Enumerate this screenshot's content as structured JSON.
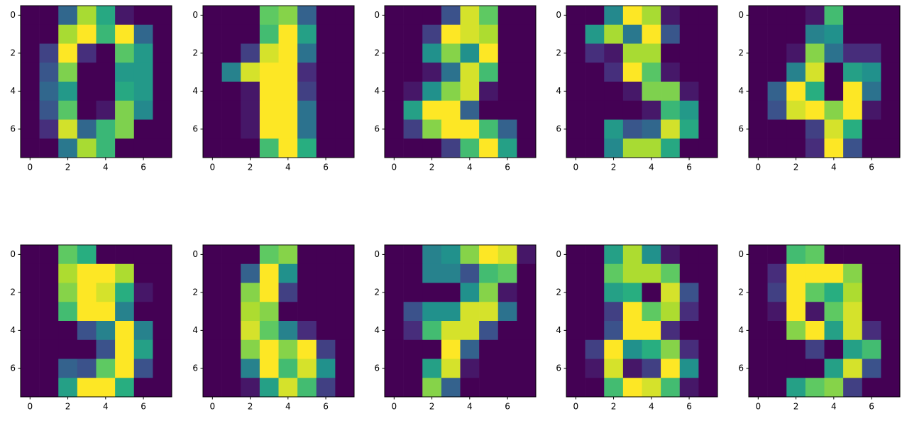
{
  "chart_data": [
    {
      "type": "heatmap",
      "colormap": "viridis",
      "clim": [
        0,
        15
      ],
      "xlim": [
        -0.5,
        7.5
      ],
      "ylim": [
        7.5,
        -0.5
      ],
      "xticks": [
        0,
        2,
        4,
        6
      ],
      "yticks": [
        0,
        2,
        4,
        6
      ],
      "values": [
        [
          0,
          0,
          5,
          13,
          9,
          1,
          0,
          0
        ],
        [
          0,
          0,
          13,
          15,
          10,
          15,
          5,
          0
        ],
        [
          0,
          3,
          15,
          2,
          0,
          11,
          8,
          0
        ],
        [
          0,
          4,
          12,
          0,
          0,
          8,
          8,
          0
        ],
        [
          0,
          5,
          8,
          0,
          0,
          9,
          8,
          0
        ],
        [
          0,
          4,
          11,
          0,
          1,
          12,
          7,
          0
        ],
        [
          0,
          2,
          14,
          5,
          10,
          12,
          0,
          0
        ],
        [
          0,
          0,
          6,
          13,
          10,
          0,
          0,
          0
        ]
      ]
    },
    {
      "type": "heatmap",
      "colormap": "viridis",
      "clim": [
        0,
        16
      ],
      "xlim": [
        -0.5,
        7.5
      ],
      "ylim": [
        7.5,
        -0.5
      ],
      "xticks": [
        0,
        2,
        4,
        6
      ],
      "yticks": [
        0,
        2,
        4,
        6
      ],
      "values": [
        [
          0,
          0,
          0,
          12,
          13,
          5,
          0,
          0
        ],
        [
          0,
          0,
          0,
          11,
          16,
          9,
          0,
          0
        ],
        [
          0,
          0,
          3,
          15,
          16,
          6,
          0,
          0
        ],
        [
          0,
          7,
          15,
          16,
          16,
          2,
          0,
          0
        ],
        [
          0,
          0,
          1,
          16,
          16,
          3,
          0,
          0
        ],
        [
          0,
          0,
          1,
          16,
          16,
          6,
          0,
          0
        ],
        [
          0,
          0,
          1,
          16,
          16,
          6,
          0,
          0
        ],
        [
          0,
          0,
          0,
          11,
          16,
          10,
          0,
          0
        ]
      ]
    },
    {
      "type": "heatmap",
      "colormap": "viridis",
      "clim": [
        0,
        16
      ],
      "xlim": [
        -0.5,
        7.5
      ],
      "ylim": [
        7.5,
        -0.5
      ],
      "xticks": [
        0,
        2,
        4,
        6
      ],
      "yticks": [
        0,
        2,
        4,
        6
      ],
      "values": [
        [
          0,
          0,
          0,
          4,
          15,
          12,
          0,
          0
        ],
        [
          0,
          0,
          3,
          16,
          15,
          14,
          0,
          0
        ],
        [
          0,
          0,
          8,
          13,
          8,
          16,
          0,
          0
        ],
        [
          0,
          0,
          1,
          6,
          15,
          11,
          0,
          0
        ],
        [
          0,
          1,
          8,
          13,
          15,
          1,
          0,
          0
        ],
        [
          0,
          9,
          16,
          16,
          5,
          0,
          0,
          0
        ],
        [
          0,
          3,
          13,
          16,
          16,
          11,
          5,
          0
        ],
        [
          0,
          0,
          0,
          3,
          11,
          16,
          9,
          0
        ]
      ]
    },
    {
      "type": "heatmap",
      "colormap": "viridis",
      "clim": [
        0,
        15
      ],
      "xlim": [
        -0.5,
        7.5
      ],
      "ylim": [
        7.5,
        -0.5
      ],
      "xticks": [
        0,
        2,
        4,
        6
      ],
      "yticks": [
        0,
        2,
        4,
        6
      ],
      "values": [
        [
          0,
          0,
          7,
          15,
          13,
          1,
          0,
          0
        ],
        [
          0,
          8,
          13,
          6,
          15,
          4,
          0,
          0
        ],
        [
          0,
          2,
          1,
          13,
          13,
          0,
          0,
          0
        ],
        [
          0,
          0,
          2,
          15,
          11,
          1,
          0,
          0
        ],
        [
          0,
          0,
          0,
          1,
          12,
          12,
          1,
          0
        ],
        [
          0,
          0,
          0,
          0,
          1,
          10,
          8,
          0
        ],
        [
          0,
          0,
          8,
          4,
          5,
          14,
          9,
          0
        ],
        [
          0,
          0,
          7,
          13,
          13,
          9,
          0,
          0
        ]
      ]
    },
    {
      "type": "heatmap",
      "colormap": "viridis",
      "clim": [
        0,
        16
      ],
      "xlim": [
        -0.5,
        7.5
      ],
      "ylim": [
        7.5,
        -0.5
      ],
      "xticks": [
        0,
        2,
        4,
        6
      ],
      "yticks": [
        0,
        2,
        4,
        6
      ],
      "values": [
        [
          0,
          0,
          0,
          1,
          11,
          0,
          0,
          0
        ],
        [
          0,
          0,
          0,
          7,
          8,
          0,
          0,
          0
        ],
        [
          0,
          0,
          1,
          13,
          6,
          2,
          2,
          0
        ],
        [
          0,
          0,
          7,
          15,
          0,
          9,
          8,
          0
        ],
        [
          0,
          5,
          16,
          10,
          0,
          16,
          6,
          0
        ],
        [
          0,
          4,
          15,
          16,
          13,
          16,
          1,
          0
        ],
        [
          0,
          0,
          0,
          3,
          15,
          10,
          0,
          0
        ],
        [
          0,
          0,
          0,
          2,
          16,
          4,
          0,
          0
        ]
      ]
    },
    {
      "type": "heatmap",
      "colormap": "viridis",
      "clim": [
        0,
        16
      ],
      "xlim": [
        -0.5,
        7.5
      ],
      "ylim": [
        7.5,
        -0.5
      ],
      "xticks": [
        0,
        2,
        4,
        6
      ],
      "yticks": [
        0,
        2,
        4,
        6
      ],
      "values": [
        [
          0,
          0,
          12,
          10,
          0,
          0,
          0,
          0
        ],
        [
          0,
          0,
          14,
          16,
          16,
          14,
          0,
          0
        ],
        [
          0,
          0,
          13,
          16,
          15,
          10,
          1,
          0
        ],
        [
          0,
          0,
          11,
          16,
          16,
          7,
          0,
          0
        ],
        [
          0,
          0,
          0,
          4,
          7,
          16,
          7,
          0
        ],
        [
          0,
          0,
          0,
          0,
          4,
          16,
          9,
          0
        ],
        [
          0,
          0,
          5,
          4,
          12,
          16,
          4,
          0
        ],
        [
          0,
          0,
          9,
          16,
          16,
          10,
          0,
          0
        ]
      ]
    },
    {
      "type": "heatmap",
      "colormap": "viridis",
      "clim": [
        0,
        16
      ],
      "xlim": [
        -0.5,
        7.5
      ],
      "ylim": [
        7.5,
        -0.5
      ],
      "xticks": [
        0,
        2,
        4,
        6
      ],
      "yticks": [
        0,
        2,
        4,
        6
      ],
      "values": [
        [
          0,
          0,
          0,
          12,
          13,
          0,
          0,
          0
        ],
        [
          0,
          0,
          5,
          16,
          8,
          0,
          0,
          0
        ],
        [
          0,
          0,
          13,
          16,
          3,
          0,
          0,
          0
        ],
        [
          0,
          0,
          14,
          13,
          0,
          0,
          0,
          0
        ],
        [
          0,
          0,
          15,
          12,
          7,
          2,
          0,
          0
        ],
        [
          0,
          0,
          13,
          16,
          13,
          16,
          3,
          0
        ],
        [
          0,
          0,
          7,
          16,
          11,
          15,
          8,
          0
        ],
        [
          0,
          0,
          1,
          9,
          15,
          11,
          3,
          0
        ]
      ]
    },
    {
      "type": "heatmap",
      "colormap": "viridis",
      "clim": [
        0,
        16
      ],
      "xlim": [
        -0.5,
        7.5
      ],
      "ylim": [
        7.5,
        -0.5
      ],
      "xticks": [
        0,
        2,
        4,
        6
      ],
      "yticks": [
        0,
        2,
        4,
        6
      ],
      "values": [
        [
          0,
          0,
          7,
          8,
          13,
          16,
          15,
          1
        ],
        [
          0,
          0,
          7,
          7,
          4,
          11,
          12,
          0
        ],
        [
          0,
          0,
          0,
          0,
          8,
          13,
          1,
          0
        ],
        [
          0,
          4,
          8,
          8,
          15,
          15,
          6,
          0
        ],
        [
          0,
          2,
          11,
          15,
          15,
          4,
          0,
          0
        ],
        [
          0,
          0,
          0,
          16,
          5,
          0,
          0,
          0
        ],
        [
          0,
          0,
          9,
          15,
          1,
          0,
          0,
          0
        ],
        [
          0,
          0,
          13,
          5,
          0,
          0,
          0,
          0
        ]
      ]
    },
    {
      "type": "heatmap",
      "colormap": "viridis",
      "clim": [
        0,
        16
      ],
      "xlim": [
        -0.5,
        7.5
      ],
      "ylim": [
        7.5,
        -0.5
      ],
      "xticks": [
        0,
        2,
        4,
        6
      ],
      "yticks": [
        0,
        2,
        4,
        6
      ],
      "values": [
        [
          0,
          0,
          9,
          14,
          8,
          1,
          0,
          0
        ],
        [
          0,
          0,
          12,
          14,
          14,
          12,
          0,
          0
        ],
        [
          0,
          0,
          9,
          10,
          0,
          15,
          4,
          0
        ],
        [
          0,
          0,
          3,
          16,
          12,
          14,
          2,
          0
        ],
        [
          0,
          0,
          4,
          16,
          16,
          2,
          0,
          0
        ],
        [
          0,
          3,
          16,
          8,
          10,
          13,
          2,
          0
        ],
        [
          0,
          1,
          15,
          1,
          3,
          16,
          8,
          0
        ],
        [
          0,
          0,
          11,
          16,
          15,
          11,
          1,
          0
        ]
      ]
    },
    {
      "type": "heatmap",
      "colormap": "viridis",
      "clim": [
        0,
        16
      ],
      "xlim": [
        -0.5,
        7.5
      ],
      "ylim": [
        7.5,
        -0.5
      ],
      "xticks": [
        0,
        2,
        4,
        6
      ],
      "yticks": [
        0,
        2,
        4,
        6
      ],
      "values": [
        [
          0,
          0,
          11,
          12,
          0,
          0,
          0,
          0
        ],
        [
          0,
          2,
          16,
          16,
          16,
          13,
          0,
          0
        ],
        [
          0,
          3,
          16,
          12,
          10,
          14,
          0,
          0
        ],
        [
          0,
          1,
          16,
          1,
          12,
          15,
          0,
          0
        ],
        [
          0,
          0,
          13,
          16,
          9,
          15,
          2,
          0
        ],
        [
          0,
          0,
          0,
          3,
          0,
          9,
          11,
          0
        ],
        [
          0,
          0,
          0,
          0,
          9,
          15,
          4,
          0
        ],
        [
          0,
          0,
          9,
          12,
          13,
          3,
          0,
          0
        ]
      ]
    }
  ]
}
